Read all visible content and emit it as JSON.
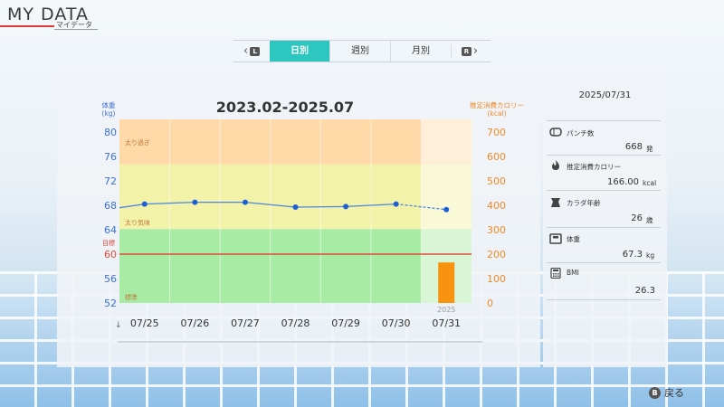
{
  "header": {
    "title": "MY DATA",
    "subtitle": "マイデータ"
  },
  "tabs": {
    "prev_key": "L",
    "next_key": "R",
    "items": [
      {
        "label": "日別",
        "active": true
      },
      {
        "label": "週別",
        "active": false
      },
      {
        "label": "月別",
        "active": false
      }
    ]
  },
  "chart_data": {
    "type": "line",
    "title": "2023.02-2025.07",
    "left_axis": {
      "label_line1": "体重",
      "label_line2": "(kg)",
      "ticks": [
        80,
        76,
        72,
        68,
        64,
        60,
        56,
        52
      ],
      "range": [
        52,
        80
      ],
      "color": "#3b6fd6"
    },
    "right_axis": {
      "label_line1": "推定消費カロリー",
      "label_line2": "(kcal)",
      "ticks": [
        700,
        600,
        500,
        400,
        300,
        200,
        100,
        0
      ],
      "range": [
        0,
        700
      ],
      "color": "#f08a2a"
    },
    "categories": [
      "07/25",
      "07/26",
      "07/27",
      "07/28",
      "07/29",
      "07/30",
      "07/31"
    ],
    "weight": {
      "values": [
        68.2,
        68.5,
        68.5,
        67.7,
        67.8,
        68.2,
        67.3
      ],
      "color": "#1f5fd6"
    },
    "calories": {
      "category": "07/31",
      "value": 166.0,
      "color": "#f7930f"
    },
    "year_label": "2025",
    "bands": [
      {
        "name": "太り過ぎ",
        "from": 74.7,
        "to": 80,
        "color": "#ffd9a8"
      },
      {
        "name": "太り気味",
        "from": 64.1,
        "to": 74.7,
        "color": "#f2f2a8"
      },
      {
        "name": "標準",
        "from": 52,
        "to": 64.1,
        "color": "#a8eba4"
      }
    ],
    "goal": {
      "label": "目標",
      "value": 60,
      "color": "#e04a3a"
    },
    "left_start_weight": 67.6
  },
  "summary": {
    "date": "2025/07/31",
    "stats": [
      {
        "icon": "punch-icon",
        "label": "パンチ数",
        "value": "668",
        "unit": "発"
      },
      {
        "icon": "flame-icon",
        "label": "推定消費カロリー",
        "value": "166.00",
        "unit": "kcal"
      },
      {
        "icon": "body-age-icon",
        "label": "カラダ年齢",
        "value": "26",
        "unit": "歳"
      },
      {
        "icon": "scale-icon",
        "label": "体重",
        "value": "67.3",
        "unit": "kg"
      },
      {
        "icon": "calculator-icon",
        "label": "BMI",
        "value": "26.3",
        "unit": ""
      }
    ]
  },
  "footer": {
    "back_key": "B",
    "back_label": "戻る"
  }
}
